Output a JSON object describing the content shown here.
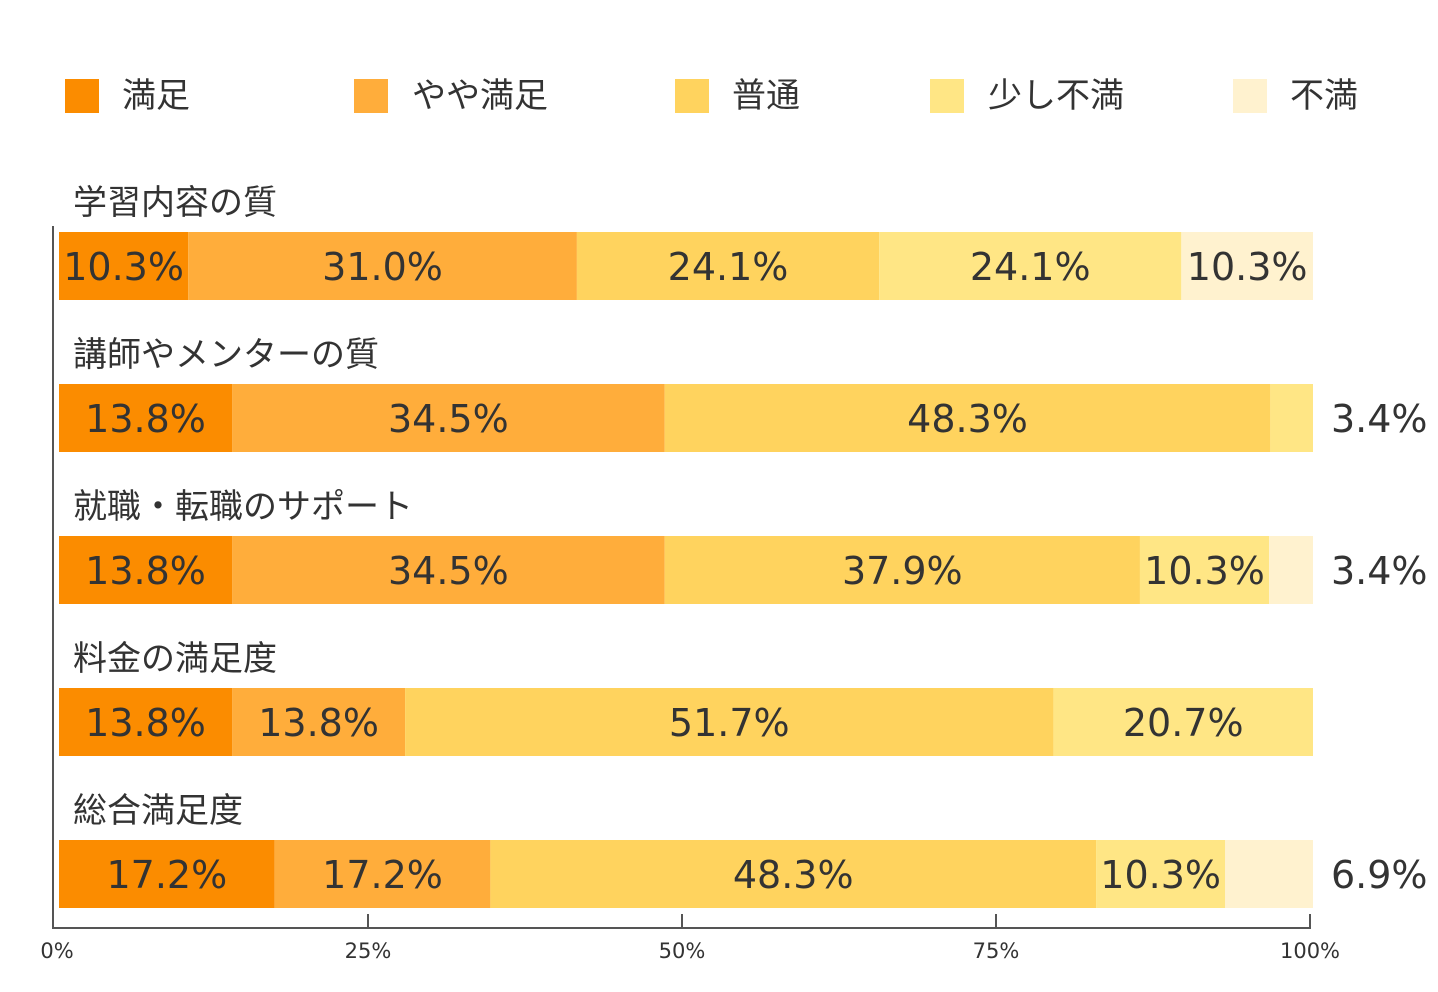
{
  "chart_data": {
    "type": "bar",
    "orientation": "horizontal",
    "stacked": true,
    "legend_position": "top",
    "categories": [
      "学習内容の質",
      "講師やメンターの質",
      "就職・転職のサポート",
      "料金の満足度",
      "総合満足度"
    ],
    "series": [
      {
        "name": "満足",
        "color": "#fb8c00",
        "values": [
          10.3,
          13.8,
          13.8,
          13.8,
          17.2
        ],
        "labels": [
          "10.3%",
          "13.8%",
          "13.8%",
          "13.8%",
          "17.2%"
        ]
      },
      {
        "name": "やや満足",
        "color": "#ffad3b",
        "values": [
          31.0,
          34.5,
          34.5,
          13.8,
          17.2
        ],
        "labels": [
          "31.0%",
          "34.5%",
          "34.5%",
          "13.8%",
          "17.2%"
        ]
      },
      {
        "name": "普通",
        "color": "#ffd35e",
        "values": [
          24.1,
          48.3,
          37.9,
          51.7,
          48.3
        ],
        "labels": [
          "24.1%",
          "48.3%",
          "37.9%",
          "51.7%",
          "48.3%"
        ]
      },
      {
        "name": "少し不満",
        "color": "#ffe685",
        "values": [
          24.1,
          3.4,
          10.3,
          20.7,
          10.3
        ],
        "labels": [
          "24.1%",
          "3.4%",
          "10.3%",
          "20.7%",
          "10.3%"
        ]
      },
      {
        "name": "不満",
        "color": "#fff2cf",
        "values": [
          10.3,
          0,
          3.4,
          0,
          6.9
        ],
        "labels": [
          "10.3%",
          "",
          "3.4%",
          "",
          "6.9%"
        ]
      }
    ],
    "xlim": [
      0,
      100
    ],
    "xticks": [
      "0%",
      "25%",
      "50%",
      "75%",
      "100%"
    ],
    "grid": false
  }
}
